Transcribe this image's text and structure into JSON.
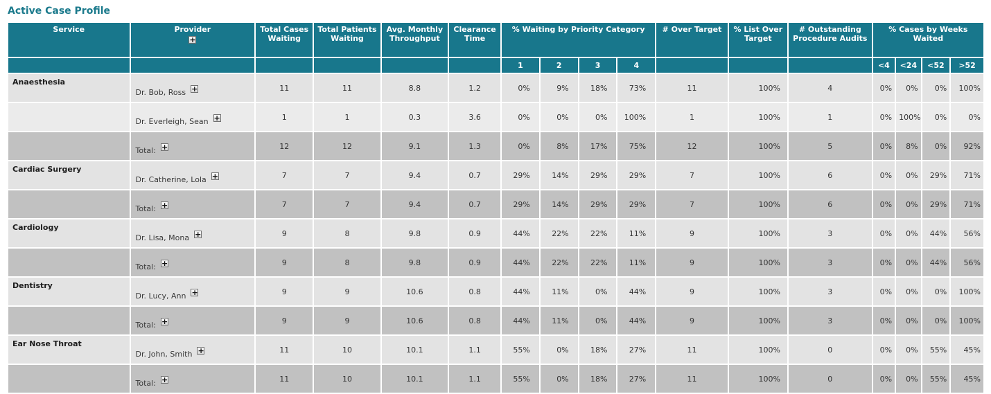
{
  "title": "Active Case Profile",
  "colors": {
    "header_teal": "#18778C",
    "title_teal": "#1B7A8C",
    "row_light": "#E3E3E3",
    "row_lighter": "#EBEBEB",
    "row_total": "#C1C1C1",
    "grid_white": "#FFFFFF",
    "text": "#333333"
  },
  "table": {
    "headers": {
      "service": "Service",
      "provider": "Provider",
      "total_cases_waiting": "Total Cases Waiting",
      "total_patients_waiting": "Total Patients Waiting",
      "avg_monthly_throughput": "Avg. Monthly Throughput",
      "clearance_time": "Clearance Time",
      "priority_group": "% Waiting by Priority Category",
      "priority_subs": [
        "1",
        "2",
        "3",
        "4"
      ],
      "over_target": "# Over Target",
      "list_over_target": "% List Over Target",
      "outstanding_audits": "# Outstanding Procedure Audits",
      "weeks_group": "% Cases by Weeks Waited",
      "weeks_subs": [
        "<4",
        "<24",
        "<52",
        ">52"
      ]
    },
    "total_label": "Total:",
    "rows": [
      {
        "kind": "provider",
        "shade": "a",
        "service": "Anaesthesia",
        "provider": "Dr. Bob, Ross",
        "cases": "11",
        "patients": "11",
        "avg": "8.8",
        "clearance": "1.2",
        "p1": "0%",
        "p2": "9%",
        "p3": "18%",
        "p4": "73%",
        "over": "11",
        "list_over": "100%",
        "audits": "4",
        "w4": "0%",
        "w24": "0%",
        "w52": "0%",
        "w52plus": "100%"
      },
      {
        "kind": "provider",
        "shade": "b",
        "service": "",
        "provider": "Dr. Everleigh, Sean",
        "cases": "1",
        "patients": "1",
        "avg": "0.3",
        "clearance": "3.6",
        "p1": "0%",
        "p2": "0%",
        "p3": "0%",
        "p4": "100%",
        "over": "1",
        "list_over": "100%",
        "audits": "1",
        "w4": "0%",
        "w24": "100%",
        "w52": "0%",
        "w52plus": "0%"
      },
      {
        "kind": "total",
        "shade": "t",
        "service": "",
        "provider": "Total:",
        "cases": "12",
        "patients": "12",
        "avg": "9.1",
        "clearance": "1.3",
        "p1": "0%",
        "p2": "8%",
        "p3": "17%",
        "p4": "75%",
        "over": "12",
        "list_over": "100%",
        "audits": "5",
        "w4": "0%",
        "w24": "8%",
        "w52": "0%",
        "w52plus": "92%"
      },
      {
        "kind": "provider",
        "shade": "a",
        "service": "Cardiac Surgery",
        "provider": "Dr. Catherine, Lola",
        "cases": "7",
        "patients": "7",
        "avg": "9.4",
        "clearance": "0.7",
        "p1": "29%",
        "p2": "14%",
        "p3": "29%",
        "p4": "29%",
        "over": "7",
        "list_over": "100%",
        "audits": "6",
        "w4": "0%",
        "w24": "0%",
        "w52": "29%",
        "w52plus": "71%"
      },
      {
        "kind": "total",
        "shade": "t",
        "service": "",
        "provider": "Total:",
        "cases": "7",
        "patients": "7",
        "avg": "9.4",
        "clearance": "0.7",
        "p1": "29%",
        "p2": "14%",
        "p3": "29%",
        "p4": "29%",
        "over": "7",
        "list_over": "100%",
        "audits": "6",
        "w4": "0%",
        "w24": "0%",
        "w52": "29%",
        "w52plus": "71%"
      },
      {
        "kind": "provider",
        "shade": "a",
        "service": "Cardiology",
        "provider": "Dr. Lisa, Mona",
        "cases": "9",
        "patients": "8",
        "avg": "9.8",
        "clearance": "0.9",
        "p1": "44%",
        "p2": "22%",
        "p3": "22%",
        "p4": "11%",
        "over": "9",
        "list_over": "100%",
        "audits": "3",
        "w4": "0%",
        "w24": "0%",
        "w52": "44%",
        "w52plus": "56%"
      },
      {
        "kind": "total",
        "shade": "t",
        "service": "",
        "provider": "Total:",
        "cases": "9",
        "patients": "8",
        "avg": "9.8",
        "clearance": "0.9",
        "p1": "44%",
        "p2": "22%",
        "p3": "22%",
        "p4": "11%",
        "over": "9",
        "list_over": "100%",
        "audits": "3",
        "w4": "0%",
        "w24": "0%",
        "w52": "44%",
        "w52plus": "56%"
      },
      {
        "kind": "provider",
        "shade": "a",
        "service": "Dentistry",
        "provider": "Dr. Lucy, Ann",
        "cases": "9",
        "patients": "9",
        "avg": "10.6",
        "clearance": "0.8",
        "p1": "44%",
        "p2": "11%",
        "p3": "0%",
        "p4": "44%",
        "over": "9",
        "list_over": "100%",
        "audits": "3",
        "w4": "0%",
        "w24": "0%",
        "w52": "0%",
        "w52plus": "100%"
      },
      {
        "kind": "total",
        "shade": "t",
        "service": "",
        "provider": "Total:",
        "cases": "9",
        "patients": "9",
        "avg": "10.6",
        "clearance": "0.8",
        "p1": "44%",
        "p2": "11%",
        "p3": "0%",
        "p4": "44%",
        "over": "9",
        "list_over": "100%",
        "audits": "3",
        "w4": "0%",
        "w24": "0%",
        "w52": "0%",
        "w52plus": "100%"
      },
      {
        "kind": "provider",
        "shade": "a",
        "service": "Ear Nose Throat",
        "provider": "Dr. John, Smith",
        "cases": "11",
        "patients": "10",
        "avg": "10.1",
        "clearance": "1.1",
        "p1": "55%",
        "p2": "0%",
        "p3": "18%",
        "p4": "27%",
        "over": "11",
        "list_over": "100%",
        "audits": "0",
        "w4": "0%",
        "w24": "0%",
        "w52": "55%",
        "w52plus": "45%"
      },
      {
        "kind": "total",
        "shade": "t",
        "service": "",
        "provider": "Total:",
        "cases": "11",
        "patients": "10",
        "avg": "10.1",
        "clearance": "1.1",
        "p1": "55%",
        "p2": "0%",
        "p3": "18%",
        "p4": "27%",
        "over": "11",
        "list_over": "100%",
        "audits": "0",
        "w4": "0%",
        "w24": "0%",
        "w52": "55%",
        "w52plus": "45%"
      }
    ]
  }
}
